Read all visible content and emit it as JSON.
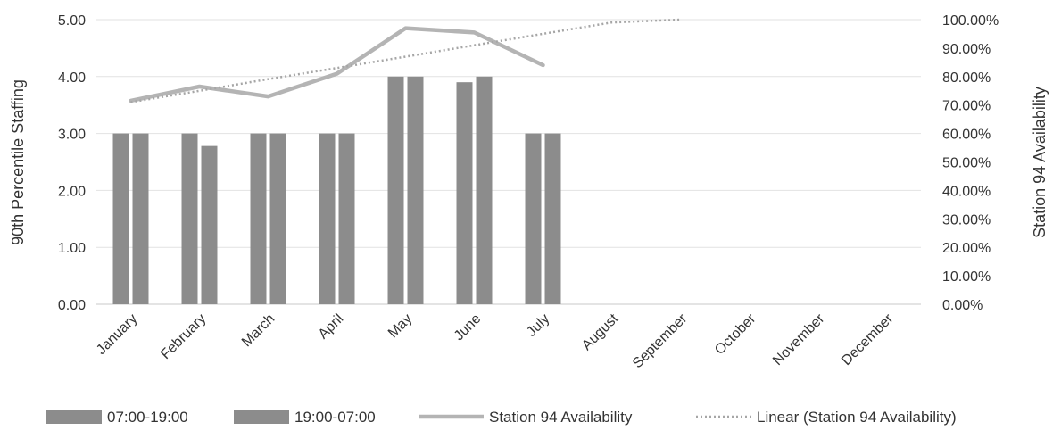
{
  "chart_data": {
    "type": "bar",
    "title": "",
    "categories": [
      "January",
      "February",
      "March",
      "April",
      "May",
      "June",
      "July",
      "August",
      "September",
      "October",
      "November",
      "December"
    ],
    "series": [
      {
        "name": "07:00-19:00",
        "kind": "bar",
        "axis": "left",
        "color": "#8c8c8c",
        "values": [
          3.0,
          3.0,
          3.0,
          3.0,
          4.0,
          3.9,
          3.0,
          null,
          null,
          null,
          null,
          null
        ]
      },
      {
        "name": "19:00-07:00",
        "kind": "bar",
        "axis": "left",
        "color": "#8c8c8c",
        "values": [
          3.0,
          2.78,
          3.0,
          3.0,
          4.0,
          4.0,
          3.0,
          null,
          null,
          null,
          null,
          null
        ]
      },
      {
        "name": "Station 94 Availability",
        "kind": "line",
        "axis": "right",
        "color": "#b4b4b4",
        "values": [
          71.5,
          76.5,
          73.0,
          81.0,
          97.0,
          95.5,
          84.0,
          null,
          null,
          null,
          null,
          null
        ]
      },
      {
        "name": "Linear (Station 94 Availability)",
        "kind": "trendline",
        "axis": "right",
        "color": "#b4b4b4",
        "values": [
          71.0,
          75.0,
          79.1,
          83.0,
          87.0,
          91.0,
          95.0,
          99.0,
          100.0,
          null,
          null,
          null
        ]
      }
    ],
    "ylabel_left": "90th Percentile Staffing",
    "ylabel_right": "Station 94 Availability",
    "ylim_left": [
      0,
      5
    ],
    "ylim_right": [
      0,
      100
    ],
    "yticks_left": [
      "0.00",
      "1.00",
      "2.00",
      "3.00",
      "4.00",
      "5.00"
    ],
    "yticks_right": [
      "0.00%",
      "10.00%",
      "20.00%",
      "30.00%",
      "40.00%",
      "50.00%",
      "60.00%",
      "70.00%",
      "80.00%",
      "90.00%",
      "100.00%"
    ],
    "grid": true,
    "legend_position": "bottom"
  }
}
